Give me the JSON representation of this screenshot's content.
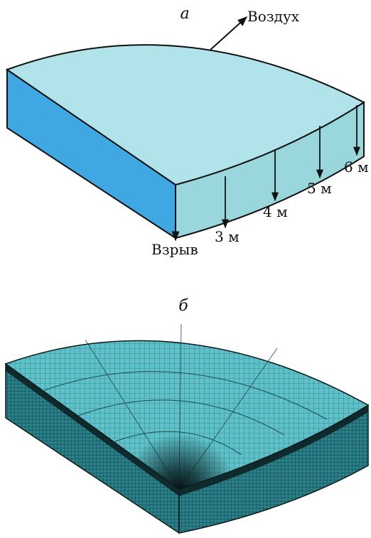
{
  "panel_a": {
    "label": "а",
    "air_label": "Воздух",
    "explosion_label": "Взрыв",
    "probes": [
      "3 м",
      "4 м",
      "5 м",
      "6 м"
    ]
  },
  "panel_b": {
    "label": "б"
  },
  "colors": {
    "top_face": "#b1e3eb",
    "side_face_left": "#3fa8e3",
    "side_face_right": "#9ad7dd",
    "outline": "#111111",
    "mesh_top": "#5fc1c9",
    "mesh_side": "#1f6f78",
    "mesh_dark": "#0a1a1c"
  }
}
